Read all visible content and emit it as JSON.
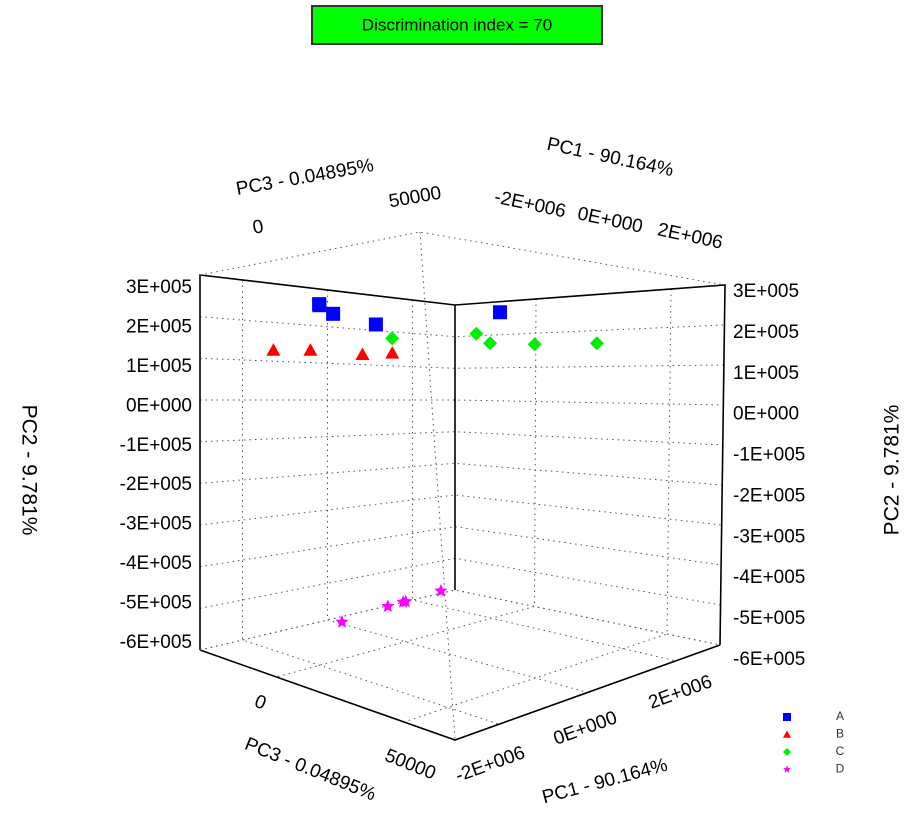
{
  "chart_data": {
    "type": "scatter3d",
    "title": "Discrimination index = 70",
    "xlabel": "PC1 - 90.164%",
    "ylabel": "PC2 - 9.781%",
    "zlabel": "PC3 - 0.04895%",
    "xlim": [
      -3000000,
      3000000
    ],
    "xticks": [
      {
        "value": -2000000,
        "label": "-2E+006"
      },
      {
        "value": 0,
        "label": "0E+000"
      },
      {
        "value": 2000000,
        "label": "2E+006"
      }
    ],
    "ylim": [
      -600000,
      300000
    ],
    "yticks": [
      {
        "value": 300000,
        "label": "3E+005"
      },
      {
        "value": 200000,
        "label": "2E+005"
      },
      {
        "value": 100000,
        "label": "1E+005"
      },
      {
        "value": 0,
        "label": "0E+000"
      },
      {
        "value": -100000,
        "label": "-1E+005"
      },
      {
        "value": -200000,
        "label": "-2E+005"
      },
      {
        "value": -300000,
        "label": "-3E+005"
      },
      {
        "value": -400000,
        "label": "-4E+005"
      },
      {
        "value": -500000,
        "label": "-5E+005"
      },
      {
        "value": -600000,
        "label": "-6E+005"
      }
    ],
    "zlim": [
      -30000,
      70000
    ],
    "zticks": [
      0,
      50000
    ],
    "grid": true,
    "legend": "lower right",
    "series": [
      {
        "name": "A",
        "color": "#0000ff",
        "marker": "square",
        "x": [
          -1300000,
          -1100000,
          -300000,
          900000,
          -1200000
        ],
        "y": [
          230000,
          210000,
          190000,
          220000,
          235000
        ],
        "z": [
          -10000,
          -8000,
          -5000,
          23000,
          -12000
        ]
      },
      {
        "name": "B",
        "color": "#ff0000",
        "marker": "triangle",
        "x": [
          -2000000,
          -1540000,
          -960000,
          -500000
        ],
        "y": [
          120000,
          120000,
          110000,
          115000
        ],
        "z": [
          -16800,
          -9600,
          1400,
          5200
        ]
      },
      {
        "name": "C",
        "color": "#00ee00",
        "marker": "diamond",
        "x": [
          -500000,
          870000,
          530000,
          1050000,
          2000000
        ],
        "y": [
          150000,
          170000,
          140000,
          140000,
          150000
        ],
        "z": [
          5200,
          14100,
          25700,
          33700,
          40400
        ]
      },
      {
        "name": "D",
        "color": "#ff00ff",
        "marker": "star",
        "x": [
          -250000,
          1050000,
          1440000,
          1500000,
          2450000
        ],
        "y": [
          -580000,
          -580000,
          -580000,
          -580000,
          -580000
        ],
        "z": [
          -20300,
          -24000,
          -24500,
          -24500,
          -26500
        ]
      }
    ]
  }
}
